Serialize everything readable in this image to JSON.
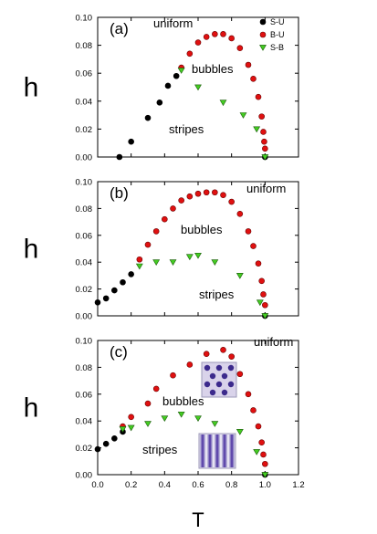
{
  "chart_data": [
    {
      "type": "scatter",
      "panel_label": "(a)",
      "ylabel": "h",
      "xlim": [
        0,
        1.2
      ],
      "ylim": [
        0,
        0.1
      ],
      "yticks": [
        "0.00",
        "0.02",
        "0.04",
        "0.06",
        "0.08",
        "0.10"
      ],
      "region_labels": [
        "uniform",
        "bubbles",
        "stripes"
      ],
      "legend": [
        {
          "name": "S-U",
          "marker": "circle",
          "color": "#000000"
        },
        {
          "name": "B-U",
          "marker": "circle",
          "color": "#e01010"
        },
        {
          "name": "S-B",
          "marker": "triangle-down",
          "color": "#44cc22"
        }
      ],
      "series": [
        {
          "name": "S-U",
          "points": [
            [
              0.13,
              0.0
            ],
            [
              0.2,
              0.011
            ],
            [
              0.3,
              0.028
            ],
            [
              0.37,
              0.039
            ],
            [
              0.42,
              0.051
            ],
            [
              0.47,
              0.058
            ],
            [
              1.0,
              0.0
            ]
          ]
        },
        {
          "name": "B-U",
          "points": [
            [
              0.5,
              0.064
            ],
            [
              0.55,
              0.074
            ],
            [
              0.6,
              0.082
            ],
            [
              0.65,
              0.086
            ],
            [
              0.7,
              0.088
            ],
            [
              0.75,
              0.088
            ],
            [
              0.8,
              0.085
            ],
            [
              0.85,
              0.078
            ],
            [
              0.9,
              0.066
            ],
            [
              0.93,
              0.056
            ],
            [
              0.96,
              0.043
            ],
            [
              0.98,
              0.029
            ],
            [
              0.99,
              0.018
            ],
            [
              0.995,
              0.011
            ],
            [
              1.0,
              0.006
            ]
          ]
        },
        {
          "name": "S-B",
          "points": [
            [
              0.5,
              0.062
            ],
            [
              0.6,
              0.05
            ],
            [
              0.75,
              0.039
            ],
            [
              0.87,
              0.03
            ],
            [
              0.95,
              0.02
            ],
            [
              1.0,
              0.0
            ]
          ]
        }
      ]
    },
    {
      "type": "scatter",
      "panel_label": "(b)",
      "ylabel": "h",
      "xlim": [
        0,
        1.2
      ],
      "ylim": [
        0,
        0.1
      ],
      "yticks": [
        "0.00",
        "0.02",
        "0.04",
        "0.06",
        "0.08",
        "0.10"
      ],
      "region_labels": [
        "uniform",
        "bubbles",
        "stripes"
      ],
      "series": [
        {
          "name": "S-U",
          "points": [
            [
              0.0,
              0.01
            ],
            [
              0.05,
              0.013
            ],
            [
              0.1,
              0.019
            ],
            [
              0.15,
              0.025
            ],
            [
              0.2,
              0.031
            ],
            [
              1.0,
              0.0
            ]
          ]
        },
        {
          "name": "B-U",
          "points": [
            [
              0.25,
              0.042
            ],
            [
              0.3,
              0.053
            ],
            [
              0.35,
              0.063
            ],
            [
              0.4,
              0.072
            ],
            [
              0.45,
              0.08
            ],
            [
              0.5,
              0.086
            ],
            [
              0.55,
              0.089
            ],
            [
              0.6,
              0.091
            ],
            [
              0.65,
              0.092
            ],
            [
              0.7,
              0.092
            ],
            [
              0.75,
              0.09
            ],
            [
              0.8,
              0.085
            ],
            [
              0.85,
              0.076
            ],
            [
              0.9,
              0.063
            ],
            [
              0.93,
              0.052
            ],
            [
              0.96,
              0.039
            ],
            [
              0.98,
              0.026
            ],
            [
              0.99,
              0.016
            ],
            [
              1.0,
              0.008
            ]
          ]
        },
        {
          "name": "S-B",
          "points": [
            [
              0.25,
              0.037
            ],
            [
              0.35,
              0.04
            ],
            [
              0.45,
              0.04
            ],
            [
              0.55,
              0.044
            ],
            [
              0.6,
              0.045
            ],
            [
              0.7,
              0.04
            ],
            [
              0.85,
              0.03
            ],
            [
              0.97,
              0.01
            ],
            [
              1.0,
              0.0
            ]
          ]
        }
      ]
    },
    {
      "type": "scatter",
      "panel_label": "(c)",
      "ylabel": "h",
      "xlabel": "T",
      "xlim": [
        0,
        1.2
      ],
      "ylim": [
        0,
        0.1
      ],
      "xticks": [
        "0.0",
        "0.2",
        "0.4",
        "0.6",
        "0.8",
        "1.0",
        "1.2"
      ],
      "yticks": [
        "0.00",
        "0.02",
        "0.04",
        "0.06",
        "0.08",
        "0.10"
      ],
      "region_labels": [
        "uniform",
        "bubbles",
        "stripes"
      ],
      "series": [
        {
          "name": "S-U",
          "points": [
            [
              0.0,
              0.019
            ],
            [
              0.05,
              0.023
            ],
            [
              0.1,
              0.027
            ],
            [
              0.15,
              0.032
            ],
            [
              1.0,
              0.0
            ]
          ]
        },
        {
          "name": "B-U",
          "points": [
            [
              0.15,
              0.036
            ],
            [
              0.2,
              0.043
            ],
            [
              0.3,
              0.053
            ],
            [
              0.35,
              0.064
            ],
            [
              0.45,
              0.074
            ],
            [
              0.55,
              0.082
            ],
            [
              0.65,
              0.09
            ],
            [
              0.75,
              0.093
            ],
            [
              0.8,
              0.088
            ],
            [
              0.85,
              0.075
            ],
            [
              0.9,
              0.06
            ],
            [
              0.93,
              0.048
            ],
            [
              0.96,
              0.036
            ],
            [
              0.98,
              0.024
            ],
            [
              0.99,
              0.015
            ],
            [
              1.0,
              0.008
            ]
          ]
        },
        {
          "name": "S-B",
          "points": [
            [
              0.15,
              0.034
            ],
            [
              0.2,
              0.035
            ],
            [
              0.3,
              0.038
            ],
            [
              0.4,
              0.042
            ],
            [
              0.5,
              0.045
            ],
            [
              0.6,
              0.042
            ],
            [
              0.7,
              0.038
            ],
            [
              0.85,
              0.032
            ],
            [
              0.95,
              0.017
            ],
            [
              1.0,
              0.0
            ]
          ]
        }
      ],
      "insets": [
        "bubble-pattern",
        "stripe-pattern"
      ]
    }
  ]
}
